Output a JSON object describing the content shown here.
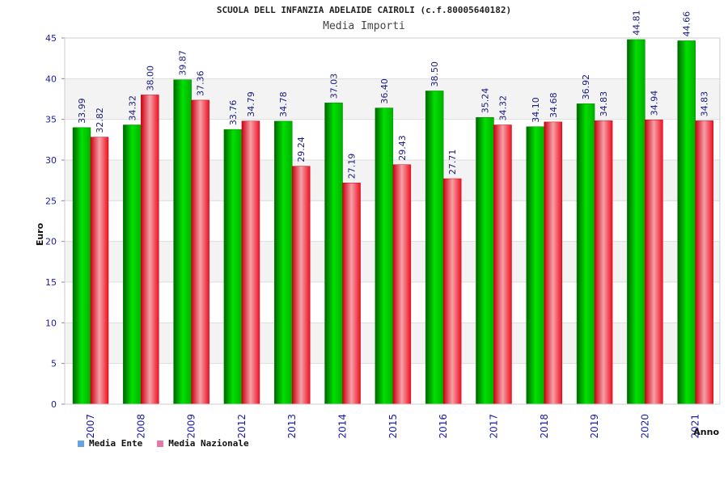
{
  "chart_data": {
    "type": "bar",
    "title": "SCUOLA DELL INFANZIA ADELAIDE CAIROLI (c.f.80005640182)",
    "subtitle": "Media Importi",
    "xlabel": "Anno",
    "ylabel": "Euro",
    "ylim": [
      0,
      45
    ],
    "yticks": [
      0,
      5,
      10,
      15,
      20,
      25,
      30,
      35,
      40,
      45
    ],
    "grid": true,
    "legend_position": "bottom-left",
    "categories": [
      "2007",
      "2008",
      "2009",
      "2012",
      "2013",
      "2014",
      "2015",
      "2016",
      "2017",
      "2018",
      "2019",
      "2020",
      "2021"
    ],
    "series": [
      {
        "name": "Media Ente",
        "color": "#00cc00",
        "legend_color": "#66a3e0",
        "values": [
          33.99,
          34.32,
          39.87,
          33.76,
          34.78,
          37.03,
          36.4,
          38.5,
          35.24,
          34.1,
          36.92,
          44.81,
          44.66
        ]
      },
      {
        "name": "Media Nazionale",
        "color": "#ee1122",
        "legend_color": "#e07aa8",
        "values": [
          32.82,
          38.0,
          37.36,
          34.79,
          29.24,
          27.19,
          29.43,
          27.71,
          34.32,
          34.68,
          34.83,
          34.94,
          34.83
        ]
      }
    ]
  }
}
